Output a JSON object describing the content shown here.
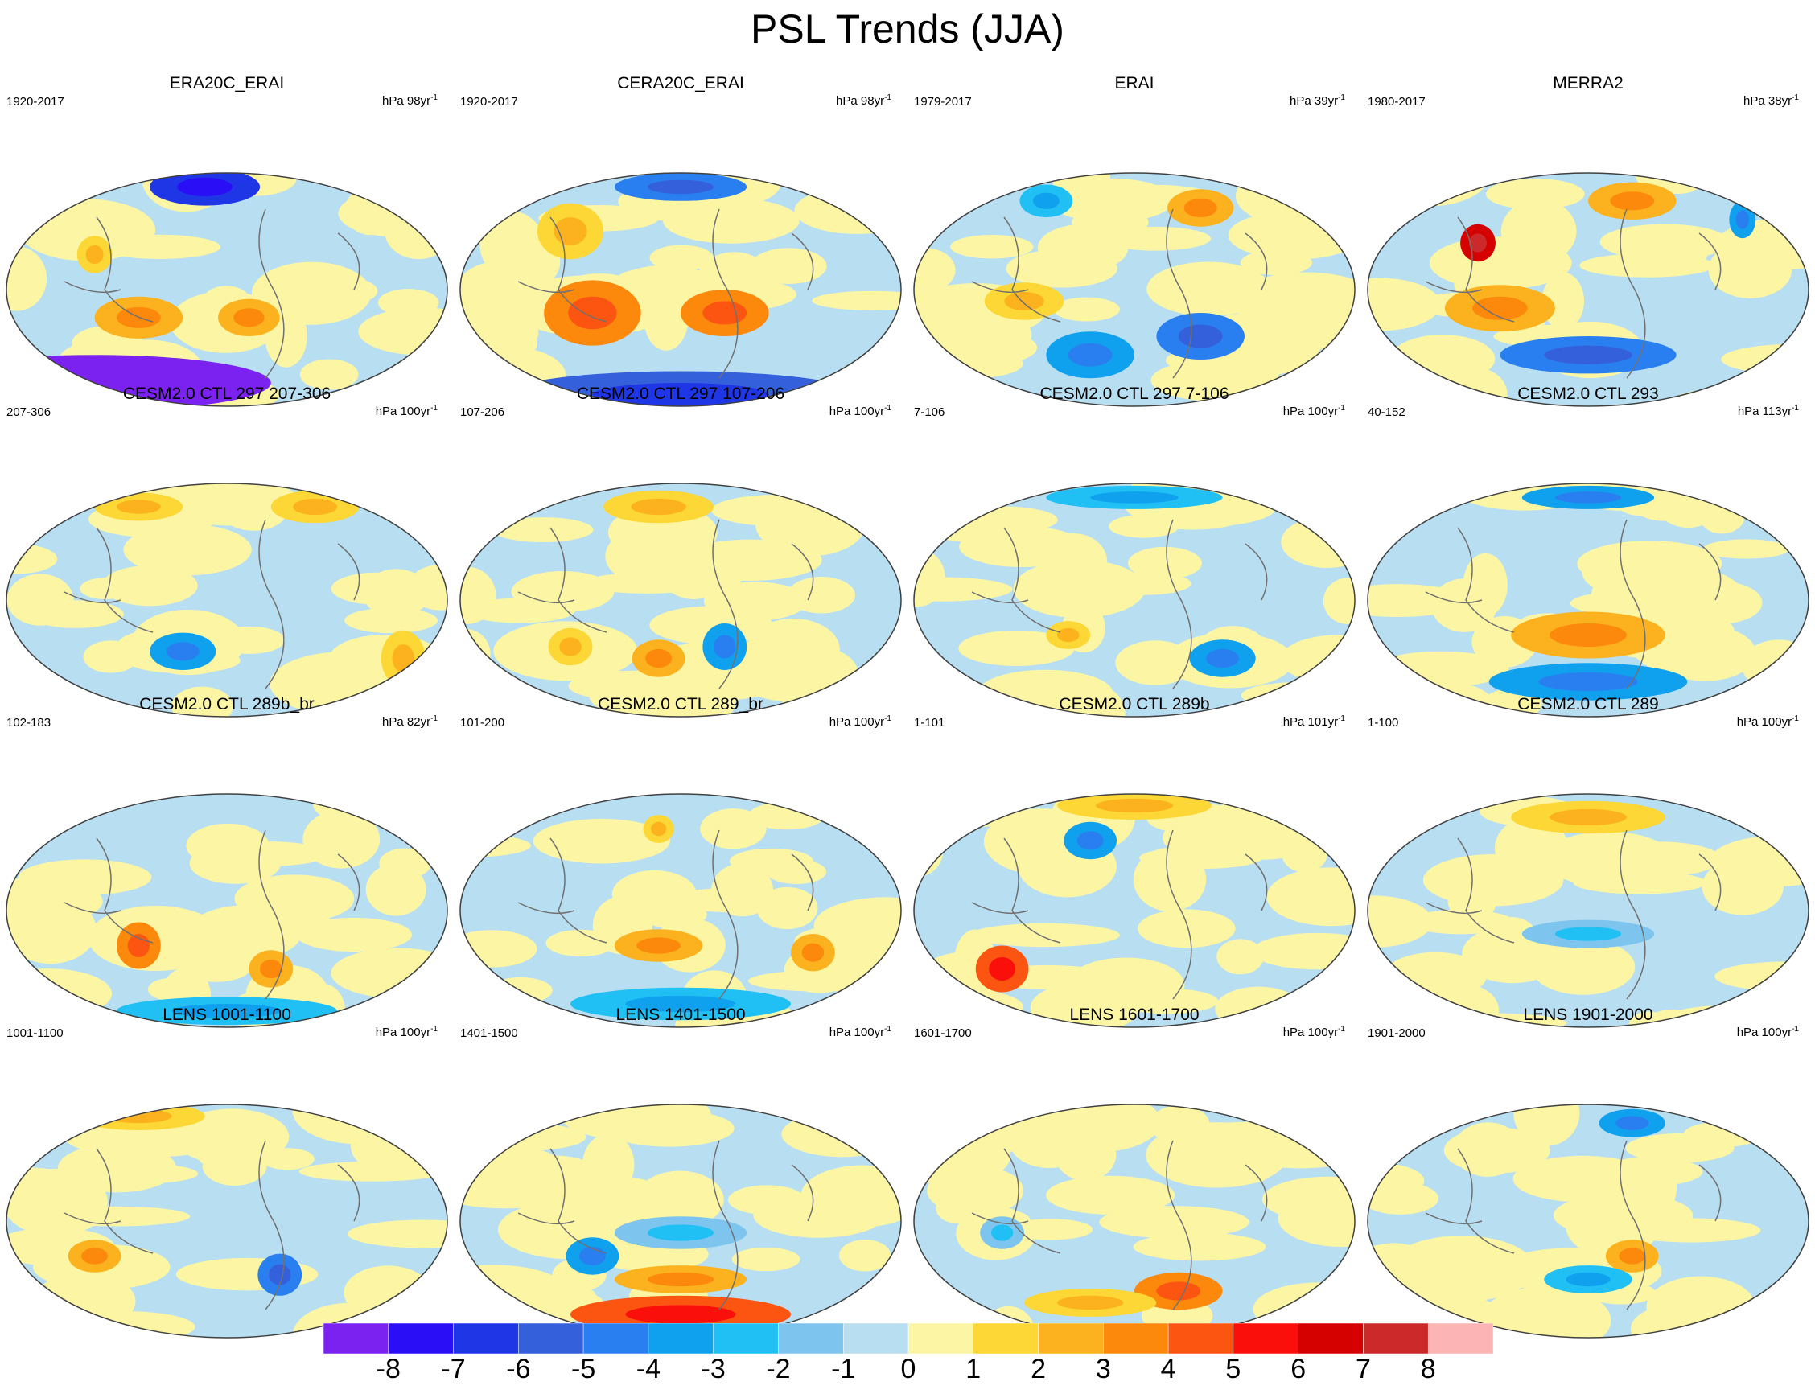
{
  "title": "PSL Trends (JJA)",
  "chart_data": {
    "type": "heatmap",
    "title": "PSL Trends (JJA)",
    "colorbar": {
      "ticks": [
        "-8",
        "-7",
        "-6",
        "-5",
        "-4",
        "-3",
        "-2",
        "-1",
        "0",
        "1",
        "2",
        "3",
        "4",
        "5",
        "6",
        "7",
        "8"
      ],
      "colors": [
        "#7b22f0",
        "#2a0ef5",
        "#1f36e6",
        "#3560dc",
        "#2a7ff0",
        "#0fa1ee",
        "#20c0f4",
        "#7dc5ee",
        "#b8def2",
        "#fcf6a4",
        "#fcd735",
        "#fcb21e",
        "#fc880c",
        "#fc5512",
        "#fa0f0a",
        "#d50000",
        "#cc2a2a",
        "#fcb4b4"
      ]
    },
    "panels": [
      {
        "title": "ERA20C_ERAI",
        "years": "1920-2017",
        "units": "hPa 98yr",
        "sup": "-1"
      },
      {
        "title": "CERA20C_ERAI",
        "years": "1920-2017",
        "units": "hPa 98yr",
        "sup": "-1"
      },
      {
        "title": "ERAI",
        "years": "1979-2017",
        "units": "hPa 39yr",
        "sup": "-1"
      },
      {
        "title": "MERRA2",
        "years": "1980-2017",
        "units": "hPa 38yr",
        "sup": "-1"
      },
      {
        "title": "CESM2.0 CTL 297 207-306",
        "years": "207-306",
        "units": "hPa 100yr",
        "sup": "-1"
      },
      {
        "title": "CESM2.0 CTL 297 107-206",
        "years": "107-206",
        "units": "hPa 100yr",
        "sup": "-1"
      },
      {
        "title": "CESM2.0 CTL 297 7-106",
        "years": "7-106",
        "units": "hPa 100yr",
        "sup": "-1"
      },
      {
        "title": "CESM2.0 CTL 293",
        "years": "40-152",
        "units": "hPa 113yr",
        "sup": "-1"
      },
      {
        "title": "CESM2.0 CTL 289b_br",
        "years": "102-183",
        "units": "hPa 82yr",
        "sup": "-1"
      },
      {
        "title": "CESM2.0 CTL 289_br",
        "years": "101-200",
        "units": "hPa 100yr",
        "sup": "-1"
      },
      {
        "title": "CESM2.0 CTL 289b",
        "years": "1-101",
        "units": "hPa 101yr",
        "sup": "-1"
      },
      {
        "title": "CESM2.0 CTL 289",
        "years": "1-100",
        "units": "hPa 100yr",
        "sup": "-1"
      },
      {
        "title": "LENS 1001-1100",
        "years": "1001-1100",
        "units": "hPa 100yr",
        "sup": "-1"
      },
      {
        "title": "LENS 1401-1500",
        "years": "1401-1500",
        "units": "hPa 100yr",
        "sup": "-1"
      },
      {
        "title": "LENS 1601-1700",
        "years": "1601-1700",
        "units": "hPa 100yr",
        "sup": "-1"
      },
      {
        "title": "LENS 1901-2000",
        "years": "1901-2000",
        "units": "hPa 100yr",
        "sup": "-1"
      }
    ]
  }
}
